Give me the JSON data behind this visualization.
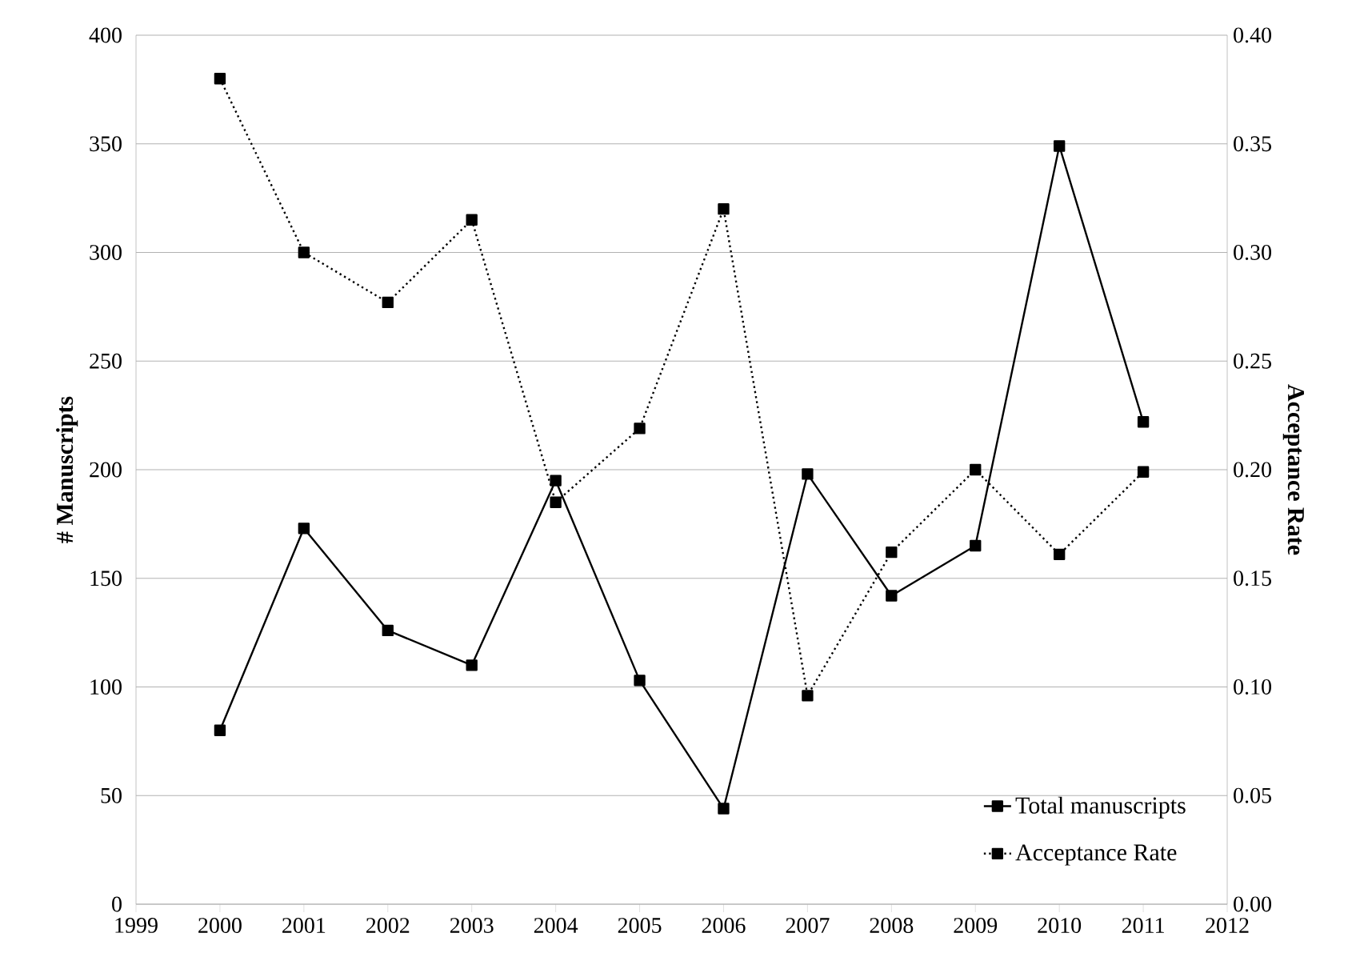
{
  "chart_data": {
    "type": "line",
    "ylabel": "# Manuscripts",
    "y2label": "Acceptance Rate",
    "x": [
      2000,
      2001,
      2002,
      2003,
      2004,
      2005,
      2006,
      2007,
      2008,
      2009,
      2010,
      2011
    ],
    "series": [
      {
        "name": "Total manuscripts",
        "color": "#000000",
        "line_style": "solid",
        "values": [
          80,
          173,
          126,
          110,
          195,
          103,
          44,
          198,
          142,
          165,
          349,
          222
        ]
      },
      {
        "name": "Acceptance Rate",
        "color": "#000000",
        "line_style": "dotted",
        "axis": "y2",
        "values": [
          0.38,
          0.3,
          0.277,
          0.315,
          0.185,
          0.219,
          0.32,
          0.096,
          0.162,
          0.2,
          0.161,
          0.199
        ]
      }
    ],
    "xlim": [
      1999,
      2012
    ],
    "xticks": [
      1999,
      2000,
      2001,
      2002,
      2003,
      2004,
      2005,
      2006,
      2007,
      2008,
      2009,
      2010,
      2011,
      2012
    ],
    "ylim": [
      0,
      400
    ],
    "yticks": [
      0,
      50,
      100,
      150,
      200,
      250,
      300,
      350,
      400
    ],
    "y2lim": [
      0,
      0.4
    ],
    "y2ticks": [
      {
        "value": 0,
        "label": "0.00"
      },
      {
        "value": 0.05,
        "label": "0.05"
      },
      {
        "value": 0.1,
        "label": "0.10"
      },
      {
        "value": 0.15,
        "label": "0.15"
      },
      {
        "value": 0.2,
        "label": "0.20"
      },
      {
        "value": 0.25,
        "label": "0.25"
      },
      {
        "value": 0.3,
        "label": "0.30"
      },
      {
        "value": 0.35,
        "label": "0.35"
      },
      {
        "value": 0.4,
        "label": "0.40"
      }
    ],
    "grid": "y",
    "legend": "bottom right",
    "marker": "square"
  }
}
